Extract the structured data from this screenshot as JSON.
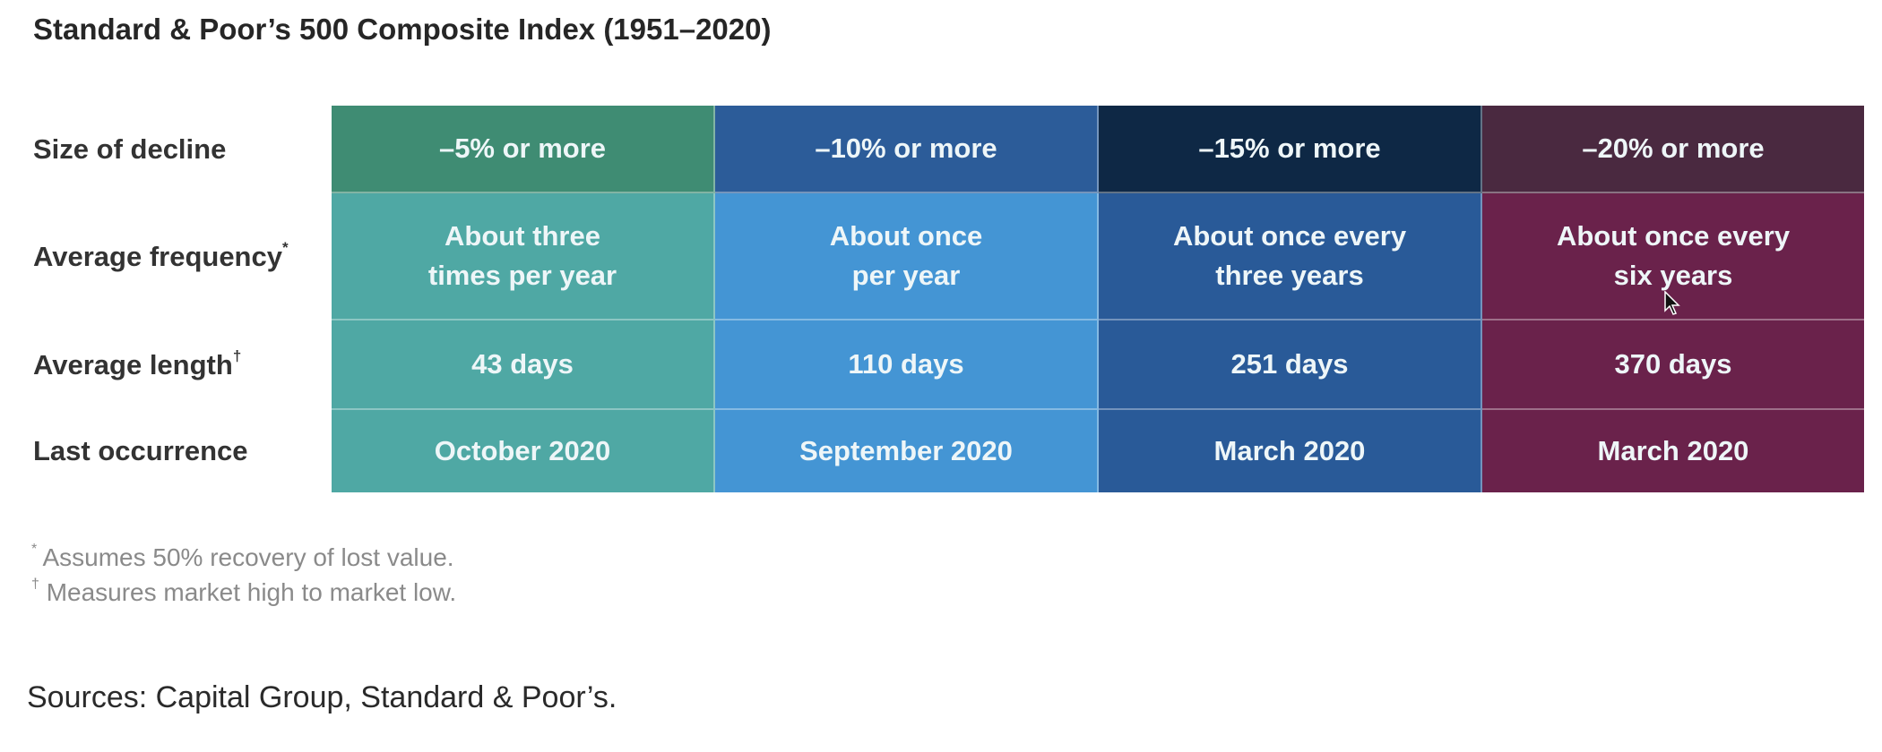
{
  "chart_data": {
    "type": "table",
    "title": "Standard & Poor’s 500 Composite Index (1951–2020)",
    "row_labels": [
      {
        "text": "Size of decline",
        "mark": ""
      },
      {
        "text": "Average frequency",
        "mark": "*"
      },
      {
        "text": "Average length",
        "mark": "†"
      },
      {
        "text": "Last occurrence",
        "mark": ""
      }
    ],
    "columns": [
      {
        "header": "–5% or more",
        "frequency": "About three\ntimes per year",
        "length": "43 days",
        "last": "October 2020",
        "header_color": "#3f8c73",
        "body_color": "#4fa8a4"
      },
      {
        "header": "–10% or more",
        "frequency": "About once\nper year",
        "length": "110 days",
        "last": "September 2020",
        "header_color": "#2c5c99",
        "body_color": "#4495d4"
      },
      {
        "header": "–15% or more",
        "frequency": "About once every\nthree years",
        "length": "251 days",
        "last": "March 2020",
        "header_color": "#0e2845",
        "body_color": "#295a98"
      },
      {
        "header": "–20% or more",
        "frequency": "About once every\nsix years",
        "length": "370 days",
        "last": "March 2020",
        "header_color": "#4a2940",
        "body_color": "#6a224b"
      }
    ]
  },
  "footnotes": [
    {
      "mark": "*",
      "text": "Assumes 50% recovery of lost value."
    },
    {
      "mark": "†",
      "text": "Measures market high to market low."
    }
  ],
  "source": "Sources: Capital Group, Standard & Poor’s."
}
